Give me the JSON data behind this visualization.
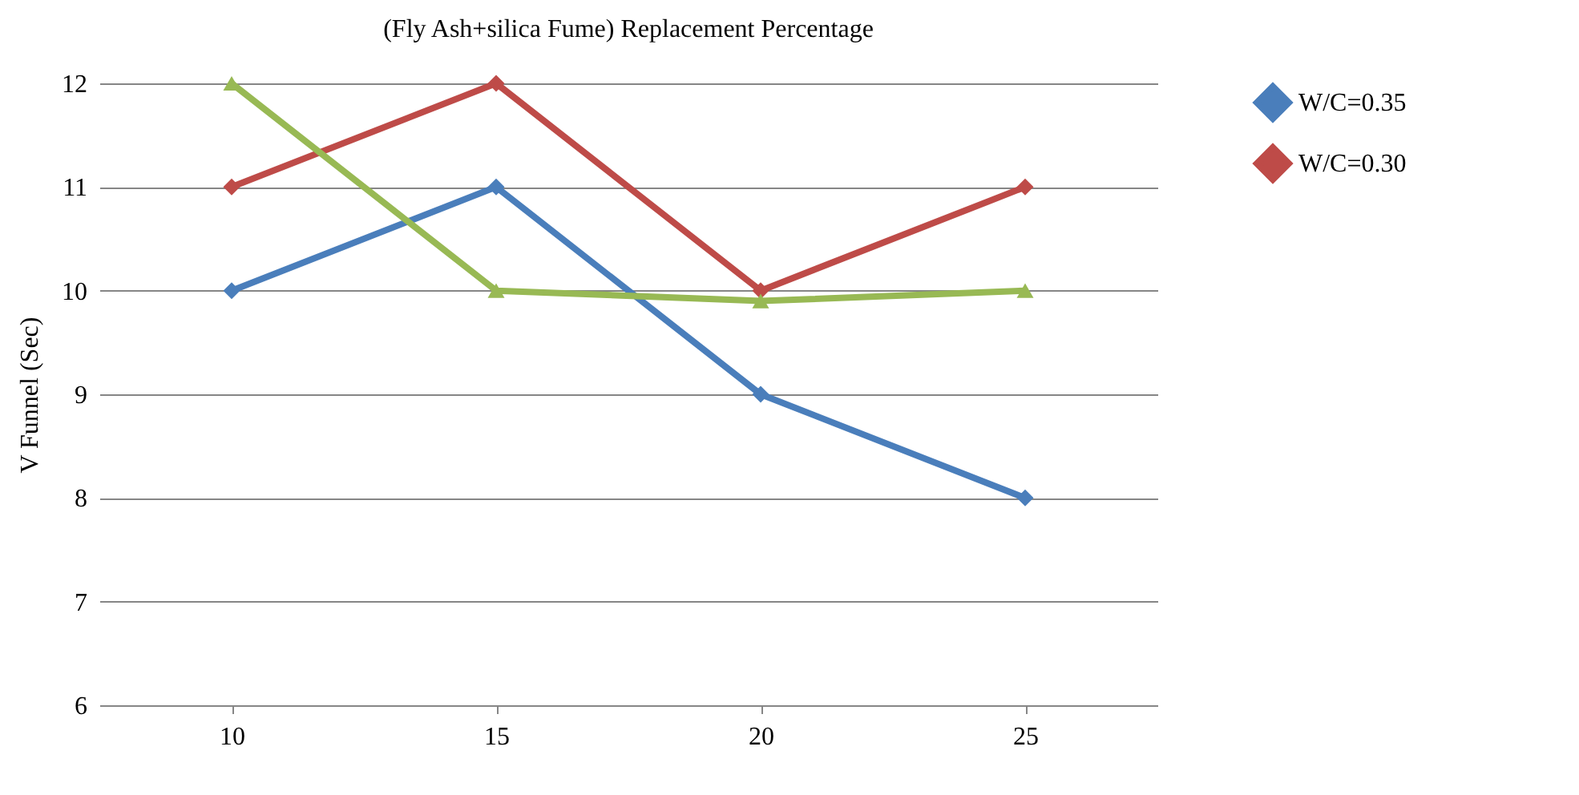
{
  "chart_data": {
    "type": "line",
    "title": "(Fly Ash+silica Fume) Replacement Percentage",
    "ylabel": "V Funnel (Sec)",
    "categories": [
      "10",
      "15",
      "20",
      "25"
    ],
    "series": [
      {
        "name": "W/C=0.35",
        "color": "#4a7ebb",
        "values": [
          10,
          11,
          9,
          8
        ]
      },
      {
        "name": "W/C=0.30",
        "color": "#be4b48",
        "values": [
          11,
          12,
          10,
          11
        ]
      },
      {
        "color": "#98b954",
        "values": [
          12,
          10,
          9.9,
          10
        ],
        "marker": "triangle"
      }
    ],
    "ylim": [
      6,
      12
    ],
    "yticks": [
      6,
      7,
      8,
      9,
      10,
      11,
      12
    ],
    "grid": "y",
    "legend": "top right",
    "marker": "diamond",
    "line_style": "solid"
  }
}
